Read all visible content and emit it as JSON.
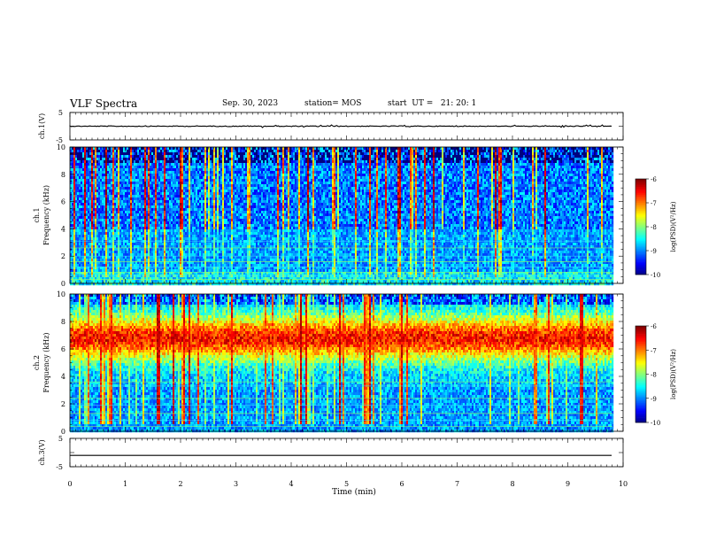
{
  "header": {
    "title": "VLF Spectra",
    "date": "Sep. 30, 2023",
    "station": "station= MOS",
    "start": "start  UT =   21: 20: 1"
  },
  "chart_data": [
    {
      "type": "line",
      "panel": "ch1-waveform",
      "ylabel": "ch.1(V)",
      "ylim": [
        -5,
        5
      ],
      "yticks": [
        "5",
        "-5"
      ],
      "trace_level": 0
    },
    {
      "type": "heatmap",
      "panel": "ch1-spectrogram",
      "ylabel_top": "ch.1",
      "ylabel": "Frequency (kHz)",
      "ylim": [
        0,
        10
      ],
      "yticks": [
        "0",
        "2",
        "4",
        "6",
        "8",
        "10"
      ],
      "colorbar": {
        "label": "log(PSD)(V²/Hz)",
        "range": [
          -10,
          -6
        ],
        "ticks": [
          "-6",
          "-7",
          "-8",
          "-9",
          "-10"
        ]
      }
    },
    {
      "type": "heatmap",
      "panel": "ch2-spectrogram",
      "ylabel_top": "ch.2",
      "ylabel": "Frequency (kHz)",
      "ylim": [
        0,
        10
      ],
      "yticks": [
        "0",
        "2",
        "4",
        "6",
        "8",
        "10"
      ],
      "colorbar": {
        "label": "log(PSD)(V²/Hz)",
        "range": [
          -10,
          -6
        ],
        "ticks": [
          "-6",
          "-7",
          "-8",
          "-9",
          "-10"
        ]
      }
    },
    {
      "type": "line",
      "panel": "ch3-waveform",
      "ylabel": "ch.3(V)",
      "ylim": [
        -5,
        5
      ],
      "yticks": [
        "5",
        "-5"
      ],
      "trace_level": -1,
      "xlabel": "Time (min)",
      "xlim": [
        0,
        10
      ],
      "xticks": [
        "0",
        "1",
        "2",
        "3",
        "4",
        "5",
        "6",
        "7",
        "8",
        "9",
        "10"
      ]
    }
  ]
}
